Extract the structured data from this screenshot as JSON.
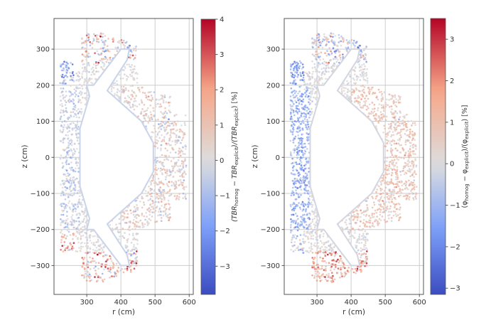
{
  "chart_data": [
    {
      "type": "scatter",
      "title": "",
      "xlabel": "r (cm)",
      "ylabel": "z (cm)",
      "xlim": [
        204,
        612
      ],
      "ylim": [
        -380,
        385
      ],
      "xticks": [
        300,
        400,
        500,
        600
      ],
      "yticks": [
        -300,
        -200,
        -100,
        0,
        100,
        200,
        300
      ],
      "grid": true,
      "colormap": "coolwarm",
      "colorbar": {
        "label_parts": [
          "(TBR",
          "homog",
          " − TBR",
          "explicit",
          ")/(TBR",
          "explicit",
          ") [%]"
        ],
        "label": "(TBR_homog − TBR_explicit)/(TBR_explicit) [%]",
        "range": [
          -3.8,
          4.0
        ],
        "ticks": [
          -3,
          -2,
          -1,
          0,
          1,
          2,
          3,
          4
        ]
      },
      "field_description": "Relative TBR difference per cell across blanket cross-section; strongest positive (red) at top and bottom divertor corners (~300-340 cm), negative (blue) clusters at inboard top/bottom (r≈230-260)",
      "regions": [
        {
          "name": "top-divertor",
          "r": [
            280,
            450
          ],
          "z": [
            260,
            350
          ],
          "bias": 0.6,
          "spread": 2.6
        },
        {
          "name": "inboard-top-corner",
          "r": [
            222,
            262
          ],
          "z": [
            200,
            270
          ],
          "bias": -1.6,
          "spread": 2.0
        },
        {
          "name": "inboard-mid",
          "r": [
            222,
            280
          ],
          "z": [
            -200,
            200
          ],
          "bias": -0.6,
          "spread": 1.0
        },
        {
          "name": "inboard-bottom-corner",
          "r": [
            222,
            262
          ],
          "z": [
            -270,
            -200
          ],
          "bias": 1.5,
          "spread": 2.4
        },
        {
          "name": "bottom-divertor",
          "r": [
            280,
            450
          ],
          "z": [
            -350,
            -260
          ],
          "bias": 1.6,
          "spread": 2.4
        },
        {
          "name": "outboard",
          "r": [
            400,
            592
          ],
          "z": [
            -200,
            200
          ],
          "bias": 0.5,
          "spread": 1.4
        }
      ]
    },
    {
      "type": "scatter",
      "title": "",
      "xlabel": "r (cm)",
      "ylabel": "z (cm)",
      "xlim": [
        204,
        612
      ],
      "ylim": [
        -380,
        385
      ],
      "xticks": [
        300,
        400,
        500,
        600
      ],
      "yticks": [
        -300,
        -200,
        -100,
        0,
        100,
        200,
        300
      ],
      "grid": true,
      "colormap": "coolwarm",
      "colorbar": {
        "label_parts": [
          "(φ",
          "homog",
          " − φ",
          "explicit",
          ")/(φ",
          "explicit",
          ") [%]"
        ],
        "label": "(φ_homog − φ_explicit)/(φ_explicit) [%]",
        "range": [
          -3.15,
          3.5
        ],
        "ticks": [
          -3,
          -2,
          -1,
          0,
          1,
          2,
          3
        ]
      },
      "field_description": "Relative flux difference; inboard side predominantly blue (−1 to −2.5%), outboard and bottom divertor predominantly red (+1 to +3%)",
      "regions": [
        {
          "name": "top-divertor",
          "r": [
            280,
            450
          ],
          "z": [
            260,
            350
          ],
          "bias": -0.3,
          "spread": 2.2
        },
        {
          "name": "inboard-top-corner",
          "r": [
            222,
            262
          ],
          "z": [
            200,
            270
          ],
          "bias": -1.8,
          "spread": 1.0
        },
        {
          "name": "inboard-mid",
          "r": [
            222,
            280
          ],
          "z": [
            -200,
            200
          ],
          "bias": -1.5,
          "spread": 0.8
        },
        {
          "name": "inboard-bottom-corner",
          "r": [
            222,
            262
          ],
          "z": [
            -270,
            -200
          ],
          "bias": -0.6,
          "spread": 1.6
        },
        {
          "name": "bottom-divertor",
          "r": [
            280,
            450
          ],
          "z": [
            -350,
            -260
          ],
          "bias": 1.9,
          "spread": 1.4
        },
        {
          "name": "outboard",
          "r": [
            400,
            592
          ],
          "z": [
            -200,
            200
          ],
          "bias": 0.9,
          "spread": 1.0
        }
      ]
    }
  ],
  "domain": {
    "outer_boundary": [
      [
        222,
        -265
      ],
      [
        222,
        268
      ],
      [
        262,
        268
      ],
      [
        262,
        240
      ],
      [
        285,
        240
      ],
      [
        285,
        340
      ],
      [
        340,
        348
      ],
      [
        390,
        330
      ],
      [
        445,
        312
      ],
      [
        450,
        200
      ],
      [
        500,
        180
      ],
      [
        545,
        170
      ],
      [
        545,
        120
      ],
      [
        590,
        118
      ],
      [
        592,
        -118
      ],
      [
        545,
        -120
      ],
      [
        545,
        -175
      ],
      [
        500,
        -180
      ],
      [
        450,
        -200
      ],
      [
        448,
        -312
      ],
      [
        390,
        -330
      ],
      [
        340,
        -348
      ],
      [
        285,
        -340
      ],
      [
        285,
        -265
      ]
    ],
    "inner_boundary": [
      [
        300,
        200
      ],
      [
        320,
        200
      ],
      [
        400,
        300
      ],
      [
        425,
        300
      ],
      [
        418,
        270
      ],
      [
        360,
        185
      ],
      [
        460,
        100
      ],
      [
        495,
        40
      ],
      [
        495,
        -40
      ],
      [
        460,
        -100
      ],
      [
        360,
        -185
      ],
      [
        418,
        -270
      ],
      [
        425,
        -300
      ],
      [
        400,
        -300
      ],
      [
        320,
        -200
      ],
      [
        300,
        -200
      ],
      [
        308,
        -170
      ],
      [
        280,
        -80
      ],
      [
        280,
        80
      ],
      [
        308,
        170
      ]
    ]
  }
}
